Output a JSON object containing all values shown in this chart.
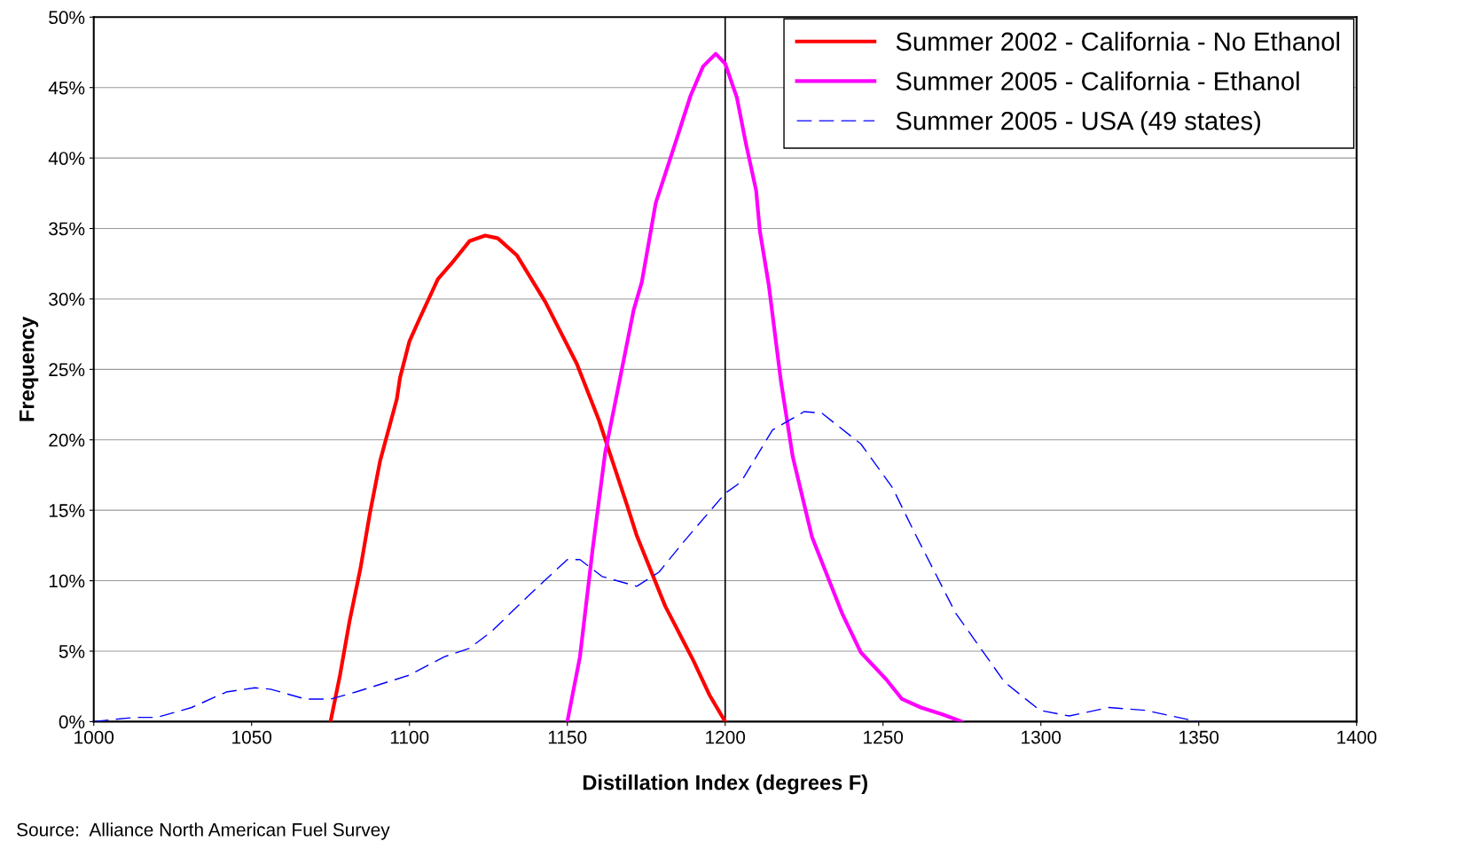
{
  "chart_data": {
    "type": "line",
    "xlabel": "Distillation Index (degrees F)",
    "ylabel": "Frequency",
    "xlim": [
      1000,
      1400
    ],
    "xticks": [
      1000,
      1050,
      1100,
      1150,
      1200,
      1250,
      1300,
      1350,
      1400
    ],
    "ylim": [
      0,
      50
    ],
    "yticks": [
      {
        "value": 0,
        "label": "0%"
      },
      {
        "value": 5,
        "label": "5%"
      },
      {
        "value": 10,
        "label": "10%"
      },
      {
        "value": 15,
        "label": "15%"
      },
      {
        "value": 20,
        "label": "20%"
      },
      {
        "value": 25,
        "label": "25%"
      },
      {
        "value": 30,
        "label": "30%"
      },
      {
        "value": 35,
        "label": "35%"
      },
      {
        "value": 40,
        "label": "40%"
      },
      {
        "value": 45,
        "label": "45%"
      },
      {
        "value": 50,
        "label": "50%"
      }
    ],
    "grid": "y",
    "legend": "top right",
    "marker": "none",
    "ref_lines": [
      {
        "axis": "x",
        "value": 1200,
        "color": "#000000",
        "line_style": "solid"
      }
    ],
    "annotations": [
      "Source:  Alliance North American Fuel Survey"
    ],
    "series": [
      {
        "name": "Summer 2002 - California - No Ethanol",
        "color": "#ff0000",
        "line_style": "solid",
        "x": [
          1075,
          1078,
          1081,
          1084.5,
          1087.4,
          1090.7,
          1096,
          1097,
          1100,
          1103,
          1109,
          1114,
          1119,
          1124,
          1128,
          1134,
          1143,
          1153,
          1160,
          1169,
          1172,
          1181,
          1190,
          1195,
          1200
        ],
        "values": [
          0,
          3.3,
          7.1,
          10.9,
          14.7,
          18.5,
          22.9,
          24.4,
          27,
          28.5,
          31.4,
          32.7,
          34.1,
          34.5,
          34.3,
          33.1,
          29.8,
          25.4,
          21.4,
          15.3,
          13.2,
          8.2,
          4.3,
          1.9,
          0
        ]
      },
      {
        "name": "Summer 2005 - California - Ethanol",
        "color": "#ff00ff",
        "line_style": "solid",
        "x": [
          1150,
          1154,
          1158,
          1162,
          1167,
          1171,
          1173.6,
          1178,
          1185,
          1189,
          1193,
          1197,
          1200,
          1203.7,
          1206.5,
          1209.8,
          1211,
          1213.8,
          1217.7,
          1221.4,
          1227.5,
          1237,
          1243,
          1251,
          1256,
          1262,
          1269,
          1275
        ],
        "values": [
          0,
          4.6,
          12.2,
          19.1,
          24.7,
          29.2,
          31.2,
          36.8,
          41.6,
          44.4,
          46.5,
          47.4,
          46.7,
          44.3,
          41.1,
          37.7,
          34.8,
          31.0,
          24.1,
          18.8,
          13.1,
          7.7,
          4.9,
          3.0,
          1.6,
          1.0,
          0.5,
          0
        ]
      },
      {
        "name": "Summer 2005 - USA (49 states)",
        "color": "#0000ff",
        "line_style": "dashed",
        "x": [
          1000,
          1013,
          1020,
          1031,
          1042,
          1051,
          1056,
          1067,
          1075,
          1083,
          1100,
          1111,
          1119,
          1126,
          1138,
          1150,
          1154,
          1161,
          1172,
          1179,
          1187,
          1200,
          1205,
          1215,
          1225,
          1230.6,
          1243,
          1253,
          1260,
          1273,
          1288.5,
          1299.7,
          1309,
          1321.6,
          1333,
          1349.7
        ],
        "values": [
          0,
          0.3,
          0.3,
          1.0,
          2.1,
          2.4,
          2.3,
          1.6,
          1.6,
          2.1,
          3.3,
          4.6,
          5.2,
          6.4,
          9.0,
          11.5,
          11.5,
          10.3,
          9.6,
          10.6,
          12.8,
          16.2,
          17.0,
          20.7,
          22.0,
          21.9,
          19.7,
          16.6,
          13.4,
          7.7,
          2.8,
          0.8,
          0.4,
          1.0,
          0.8,
          0
        ]
      }
    ]
  }
}
